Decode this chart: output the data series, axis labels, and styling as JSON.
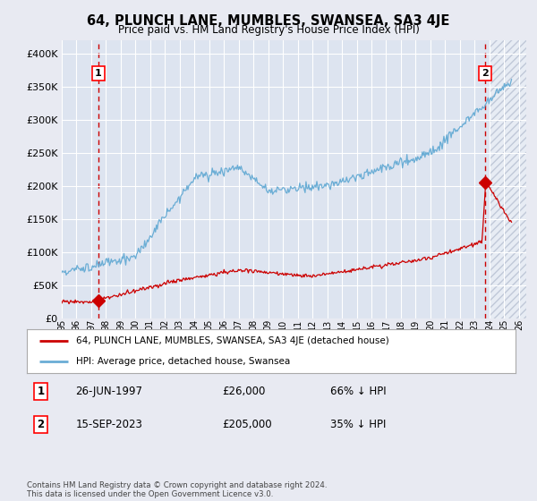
{
  "title": "64, PLUNCH LANE, MUMBLES, SWANSEA, SA3 4JE",
  "subtitle": "Price paid vs. HM Land Registry's House Price Index (HPI)",
  "ylim": [
    0,
    420000
  ],
  "xlim_start": 1995.0,
  "xlim_end": 2026.5,
  "sale1_date": 1997.48,
  "sale1_price": 26000,
  "sale1_label": "1",
  "sale2_date": 2023.71,
  "sale2_price": 205000,
  "sale2_label": "2",
  "legend_line1": "64, PLUNCH LANE, MUMBLES, SWANSEA, SA3 4JE (detached house)",
  "legend_line2": "HPI: Average price, detached house, Swansea",
  "table_row1": [
    "1",
    "26-JUN-1997",
    "£26,000",
    "66% ↓ HPI"
  ],
  "table_row2": [
    "2",
    "15-SEP-2023",
    "£205,000",
    "35% ↓ HPI"
  ],
  "footnote": "Contains HM Land Registry data © Crown copyright and database right 2024.\nThis data is licensed under the Open Government Licence v3.0.",
  "hpi_color": "#6aadd5",
  "sale_color": "#cc0000",
  "bg_color": "#e8eaf2",
  "plot_bg": "#dde4f0",
  "grid_color": "#c8d0e0",
  "hatch_color": "#c0c8d8"
}
